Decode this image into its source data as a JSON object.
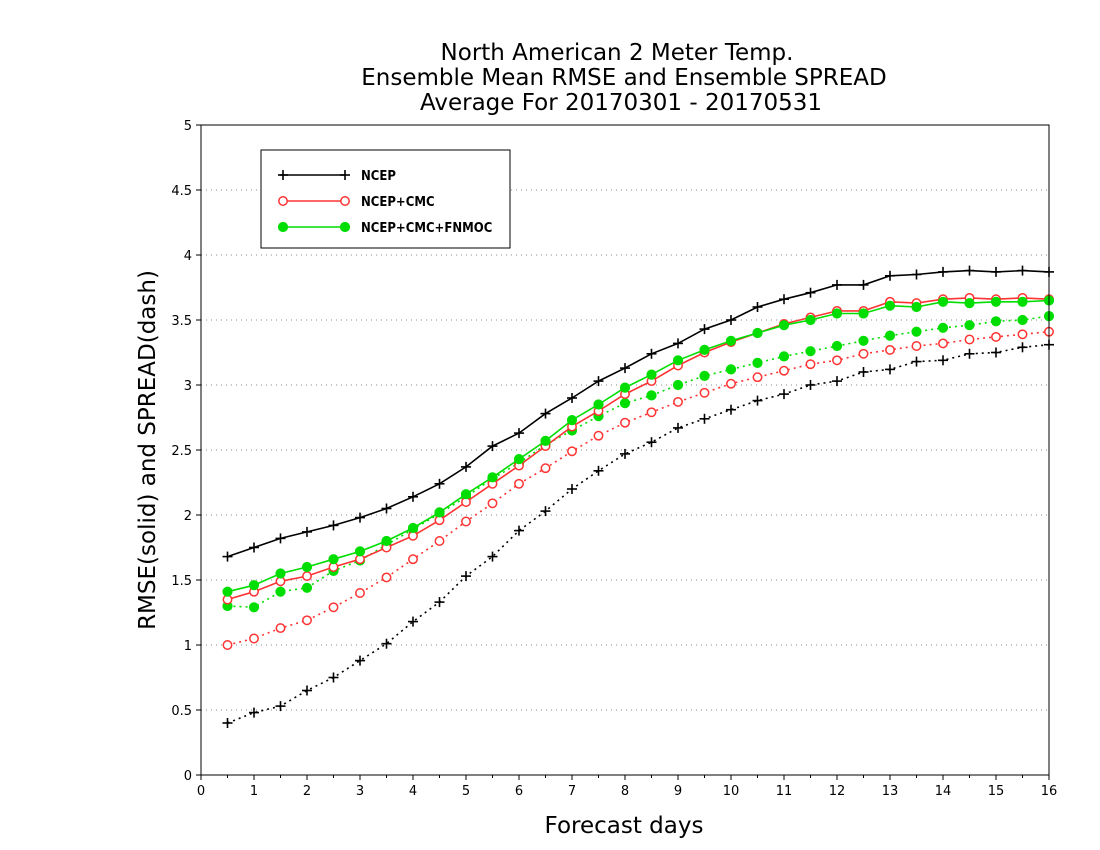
{
  "chart_data": {
    "type": "line",
    "title_lines": [
      "North American 2 Meter Temp.",
      "Ensemble Mean RMSE and Ensemble SPREAD",
      "Average For 20170301 - 20170531"
    ],
    "xlabel": "Forecast days",
    "ylabel": "RMSE(solid) and SPREAD(dash)",
    "xlim": [
      0,
      16
    ],
    "ylim": [
      0,
      5
    ],
    "x_ticks": [
      "0",
      "1",
      "2",
      "3",
      "4",
      "5",
      "6",
      "7",
      "8",
      "9",
      "10",
      "11",
      "12",
      "13",
      "14",
      "15",
      "16"
    ],
    "y_ticks": [
      "0",
      "0.5",
      "1",
      "1.5",
      "2",
      "2.5",
      "3",
      "3.5",
      "4",
      "4.5",
      "5"
    ],
    "grid": "dotted horizontal",
    "legend_position": "top-left",
    "legend": [
      {
        "label": "NCEP",
        "color": "#000000",
        "marker": "plus"
      },
      {
        "label": "NCEP+CMC",
        "color": "#ff3333",
        "marker": "open-circle"
      },
      {
        "label": "NCEP+CMC+FNMOC",
        "color": "#00dd00",
        "marker": "filled-circle"
      }
    ],
    "x": [
      0.5,
      1,
      1.5,
      2,
      2.5,
      3,
      3.5,
      4,
      4.5,
      5,
      5.5,
      6,
      6.5,
      7,
      7.5,
      8,
      8.5,
      9,
      9.5,
      10,
      10.5,
      11,
      11.5,
      12,
      12.5,
      13,
      13.5,
      14,
      14.5,
      15,
      15.5,
      16
    ],
    "series": [
      {
        "name": "NCEP",
        "metric": "RMSE",
        "style": "solid",
        "color": "#000000",
        "marker": "plus",
        "values": [
          1.68,
          1.75,
          1.82,
          1.87,
          1.92,
          1.98,
          2.05,
          2.14,
          2.24,
          2.37,
          2.53,
          2.63,
          2.78,
          2.9,
          3.03,
          3.13,
          3.24,
          3.32,
          3.43,
          3.5,
          3.6,
          3.66,
          3.71,
          3.77,
          3.77,
          3.84,
          3.85,
          3.87,
          3.88,
          3.87,
          3.88,
          3.87
        ]
      },
      {
        "name": "NCEP+CMC",
        "metric": "RMSE",
        "style": "solid",
        "color": "#ff3333",
        "marker": "open-circle",
        "values": [
          1.35,
          1.41,
          1.49,
          1.53,
          1.6,
          1.66,
          1.75,
          1.84,
          1.96,
          2.1,
          2.24,
          2.38,
          2.53,
          2.68,
          2.8,
          2.93,
          3.03,
          3.15,
          3.25,
          3.33,
          3.4,
          3.47,
          3.52,
          3.57,
          3.57,
          3.64,
          3.63,
          3.66,
          3.67,
          3.66,
          3.67,
          3.66
        ]
      },
      {
        "name": "NCEP+CMC+FNMOC",
        "metric": "RMSE",
        "style": "solid",
        "color": "#00dd00",
        "marker": "filled-circle",
        "values": [
          1.41,
          1.46,
          1.55,
          1.6,
          1.66,
          1.72,
          1.8,
          1.9,
          2.02,
          2.16,
          2.29,
          2.43,
          2.57,
          2.73,
          2.85,
          2.98,
          3.08,
          3.19,
          3.27,
          3.34,
          3.4,
          3.46,
          3.5,
          3.55,
          3.55,
          3.61,
          3.6,
          3.64,
          3.63,
          3.64,
          3.64,
          3.65
        ]
      },
      {
        "name": "NCEP",
        "metric": "SPREAD",
        "style": "dotted",
        "color": "#000000",
        "marker": "plus",
        "values": [
          0.4,
          0.48,
          0.53,
          0.65,
          0.75,
          0.88,
          1.01,
          1.18,
          1.33,
          1.53,
          1.68,
          1.88,
          2.03,
          2.2,
          2.34,
          2.47,
          2.56,
          2.67,
          2.74,
          2.81,
          2.88,
          2.93,
          3.0,
          3.03,
          3.1,
          3.12,
          3.18,
          3.19,
          3.24,
          3.25,
          3.29,
          3.31
        ]
      },
      {
        "name": "NCEP+CMC",
        "metric": "SPREAD",
        "style": "dotted",
        "color": "#ff3333",
        "marker": "open-circle",
        "values": [
          1.0,
          1.05,
          1.13,
          1.19,
          1.29,
          1.4,
          1.52,
          1.66,
          1.8,
          1.95,
          2.09,
          2.24,
          2.36,
          2.49,
          2.61,
          2.71,
          2.79,
          2.87,
          2.94,
          3.01,
          3.06,
          3.11,
          3.16,
          3.19,
          3.24,
          3.27,
          3.3,
          3.32,
          3.35,
          3.37,
          3.39,
          3.41
        ]
      },
      {
        "name": "NCEP+CMC+FNMOC",
        "metric": "SPREAD",
        "style": "dotted",
        "color": "#00dd00",
        "marker": "filled-circle",
        "values": [
          1.3,
          1.29,
          1.41,
          1.44,
          1.57,
          1.65,
          1.77,
          1.89,
          2.01,
          2.14,
          2.28,
          2.4,
          2.54,
          2.65,
          2.76,
          2.86,
          2.92,
          3.0,
          3.07,
          3.12,
          3.17,
          3.22,
          3.26,
          3.3,
          3.34,
          3.38,
          3.41,
          3.44,
          3.46,
          3.49,
          3.5,
          3.53
        ]
      }
    ]
  }
}
